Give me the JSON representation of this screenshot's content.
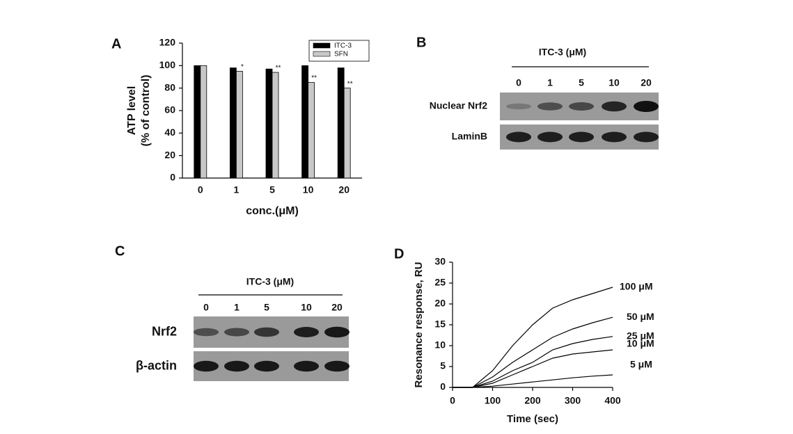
{
  "panels": [
    "A",
    "B",
    "C",
    "D"
  ],
  "chart_data": [
    {
      "type": "bar",
      "y_label": [
        "ATP level",
        "(% of control)"
      ],
      "x_label": "conc.(μM)",
      "categories": [
        "0",
        "1",
        "5",
        "10",
        "20"
      ],
      "series": [
        {
          "name": "ITC-3",
          "color": "#000000",
          "values": [
            100,
            98,
            97,
            100,
            98
          ]
        },
        {
          "name": "SFN",
          "color": "#c8c8c8",
          "values": [
            100,
            95,
            94,
            85,
            80
          ],
          "significance": [
            null,
            "*",
            "**",
            "**",
            "**"
          ]
        }
      ],
      "ylim": [
        0,
        120
      ],
      "yticks": [
        0,
        20,
        40,
        60,
        80,
        100,
        120
      ],
      "legend": "top-right"
    },
    {
      "type": "line",
      "y_label": "Resonance response, RU",
      "x_label": "Time (sec)",
      "x": [
        0,
        50,
        100,
        150,
        200,
        250,
        300,
        350,
        400
      ],
      "series": [
        {
          "name": "100 μM",
          "color": "#000000",
          "values": [
            0,
            0,
            4,
            10,
            15,
            19,
            21,
            22.5,
            24
          ]
        },
        {
          "name": "50 μM",
          "color": "#000000",
          "values": [
            0,
            0,
            2.5,
            6,
            9,
            12,
            14,
            15.5,
            16.8
          ]
        },
        {
          "name": "25 μM",
          "color": "#000000",
          "values": [
            0,
            0,
            1.5,
            4,
            6,
            9,
            10.5,
            11.5,
            12.2
          ]
        },
        {
          "name": "10 μM",
          "color": "#000000",
          "values": [
            0,
            0,
            1,
            3,
            5,
            7,
            8,
            8.5,
            9
          ]
        },
        {
          "name": "5 μM",
          "color": "#000000",
          "values": [
            0,
            0,
            0.3,
            0.8,
            1.3,
            1.8,
            2.3,
            2.7,
            3
          ]
        }
      ],
      "xlim": [
        0,
        400
      ],
      "xticks": [
        0,
        100,
        200,
        300,
        400
      ],
      "ylim": [
        0,
        30
      ],
      "yticks": [
        0,
        5,
        10,
        15,
        20,
        25,
        30
      ]
    }
  ],
  "blots": [
    {
      "title": "ITC-3 (μM)",
      "lanes": [
        "0",
        "1",
        "5",
        "10",
        "20"
      ],
      "rows": [
        "Nuclear Nrf2",
        "LaminB"
      ]
    },
    {
      "title": "ITC-3 (μM)",
      "lanes": [
        "0",
        "1",
        "5",
        "10",
        "20"
      ],
      "rows": [
        "Nrf2",
        "β-actin"
      ]
    }
  ]
}
